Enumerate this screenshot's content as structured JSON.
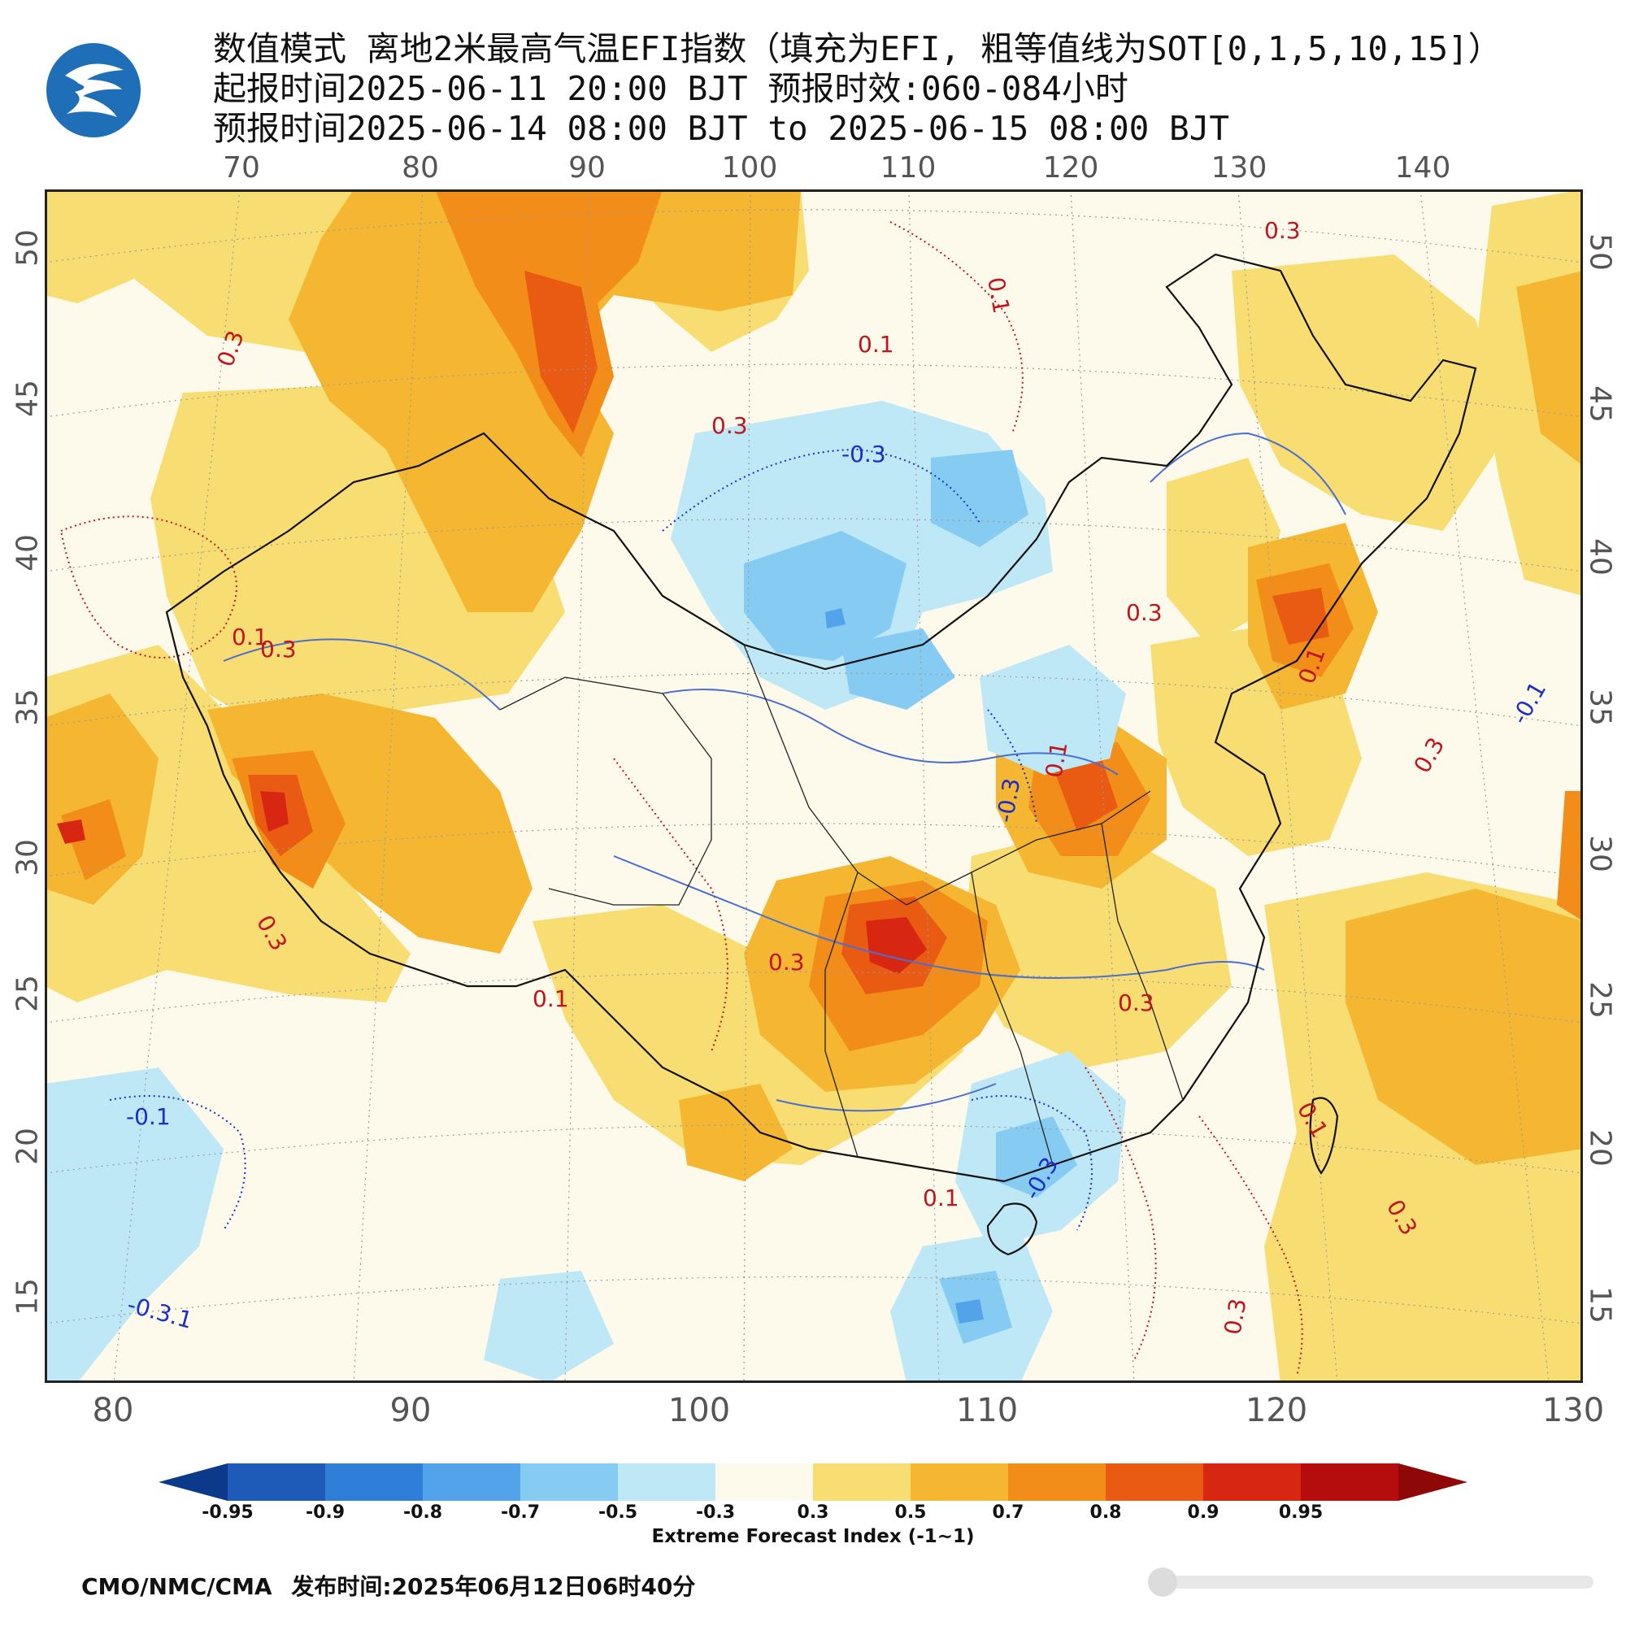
{
  "header": {
    "title_line1": "数值模式 离地2米最高气温EFI指数（填充为EFI, 粗等值线为SOT[0,1,5,10,15]）",
    "title_line2": "起报时间2025-06-11 20:00 BJT 预报时效:060-084小时",
    "title_line3": "预报时间2025-06-14 08:00 BJT to 2025-06-15 08:00 BJT"
  },
  "axes": {
    "top_ticks": [
      "70",
      "80",
      "90",
      "100",
      "110",
      "120",
      "130",
      "140"
    ],
    "bottom_ticks": [
      "80",
      "90",
      "100",
      "110",
      "120",
      "130"
    ],
    "left_ticks": [
      "50",
      "45",
      "40",
      "35",
      "30",
      "25",
      "20",
      "15"
    ],
    "right_ticks": [
      "50",
      "45",
      "40",
      "35",
      "30",
      "25",
      "20",
      "15"
    ]
  },
  "contour_labels": [
    {
      "text": "0.3",
      "color": "#c0141e"
    },
    {
      "text": "0.1",
      "color": "#c0141e"
    },
    {
      "text": "0.3",
      "color": "#c0141e"
    },
    {
      "text": "0.1",
      "color": "#c0141e"
    },
    {
      "text": "0.3",
      "color": "#c0141e"
    },
    {
      "text": "-0.3",
      "color": "#1a2ec8"
    },
    {
      "text": "0.1",
      "color": "#c0141e"
    },
    {
      "text": "0.3",
      "color": "#c0141e"
    },
    {
      "text": "0.3",
      "color": "#c0141e"
    },
    {
      "text": "0.1",
      "color": "#c0141e"
    },
    {
      "text": "0.3",
      "color": "#c0141e"
    },
    {
      "text": "-0.1",
      "color": "#1a2ec8"
    },
    {
      "text": "-0.3",
      "color": "#1a2ec8"
    },
    {
      "text": "0.1",
      "color": "#c0141e"
    },
    {
      "text": "0.3",
      "color": "#c0141e"
    },
    {
      "text": "0.3",
      "color": "#c0141e"
    },
    {
      "text": "0.3",
      "color": "#c0141e"
    },
    {
      "text": "0.1",
      "color": "#c0141e"
    },
    {
      "text": "-0.1",
      "color": "#1a2ec8"
    },
    {
      "text": "-0.3.1",
      "color": "#1a2ec8"
    },
    {
      "text": "0.1",
      "color": "#c0141e"
    },
    {
      "text": "0.3",
      "color": "#c0141e"
    },
    {
      "text": "0.3",
      "color": "#c0141e"
    },
    {
      "text": "0.1",
      "color": "#c0141e"
    },
    {
      "text": "-0.3",
      "color": "#1a2ec8"
    }
  ],
  "colorbar": {
    "title": "Extreme Forecast Index (-1~1)",
    "labels": [
      "-0.95",
      "-0.9",
      "-0.8",
      "-0.7",
      "-0.5",
      "-0.3",
      "0.3",
      "0.5",
      "0.7",
      "0.8",
      "0.9",
      "0.95"
    ],
    "colors": [
      "#1e5bb8",
      "#2f7fd8",
      "#52a3ea",
      "#86cbf2",
      "#bfe8f7",
      "#fdfaeb",
      "#f8dd72",
      "#f5b731",
      "#f18d18",
      "#e95a12",
      "#d72712",
      "#b50d0d"
    ],
    "low_end_color": "#0b3a8a",
    "high_end_color": "#8f0808"
  },
  "footer": {
    "issuer": "CMO/NMC/CMA",
    "publish_label": "发布时间:",
    "publish_time": "2025年06月12日06时40分"
  },
  "colors": {
    "ocean_sea": "#fdfaeb",
    "warm_weak": "#f8dd72",
    "warm_mid": "#f5b731",
    "warm_strong": "#f18d18",
    "hot": "#e95a12",
    "very_hot": "#d72712",
    "cool_weak": "#bfe8f7",
    "cool_mid": "#86cbf2",
    "cool_strong": "#52a3ea",
    "border": "#111111",
    "river": "#4a6fd1"
  }
}
